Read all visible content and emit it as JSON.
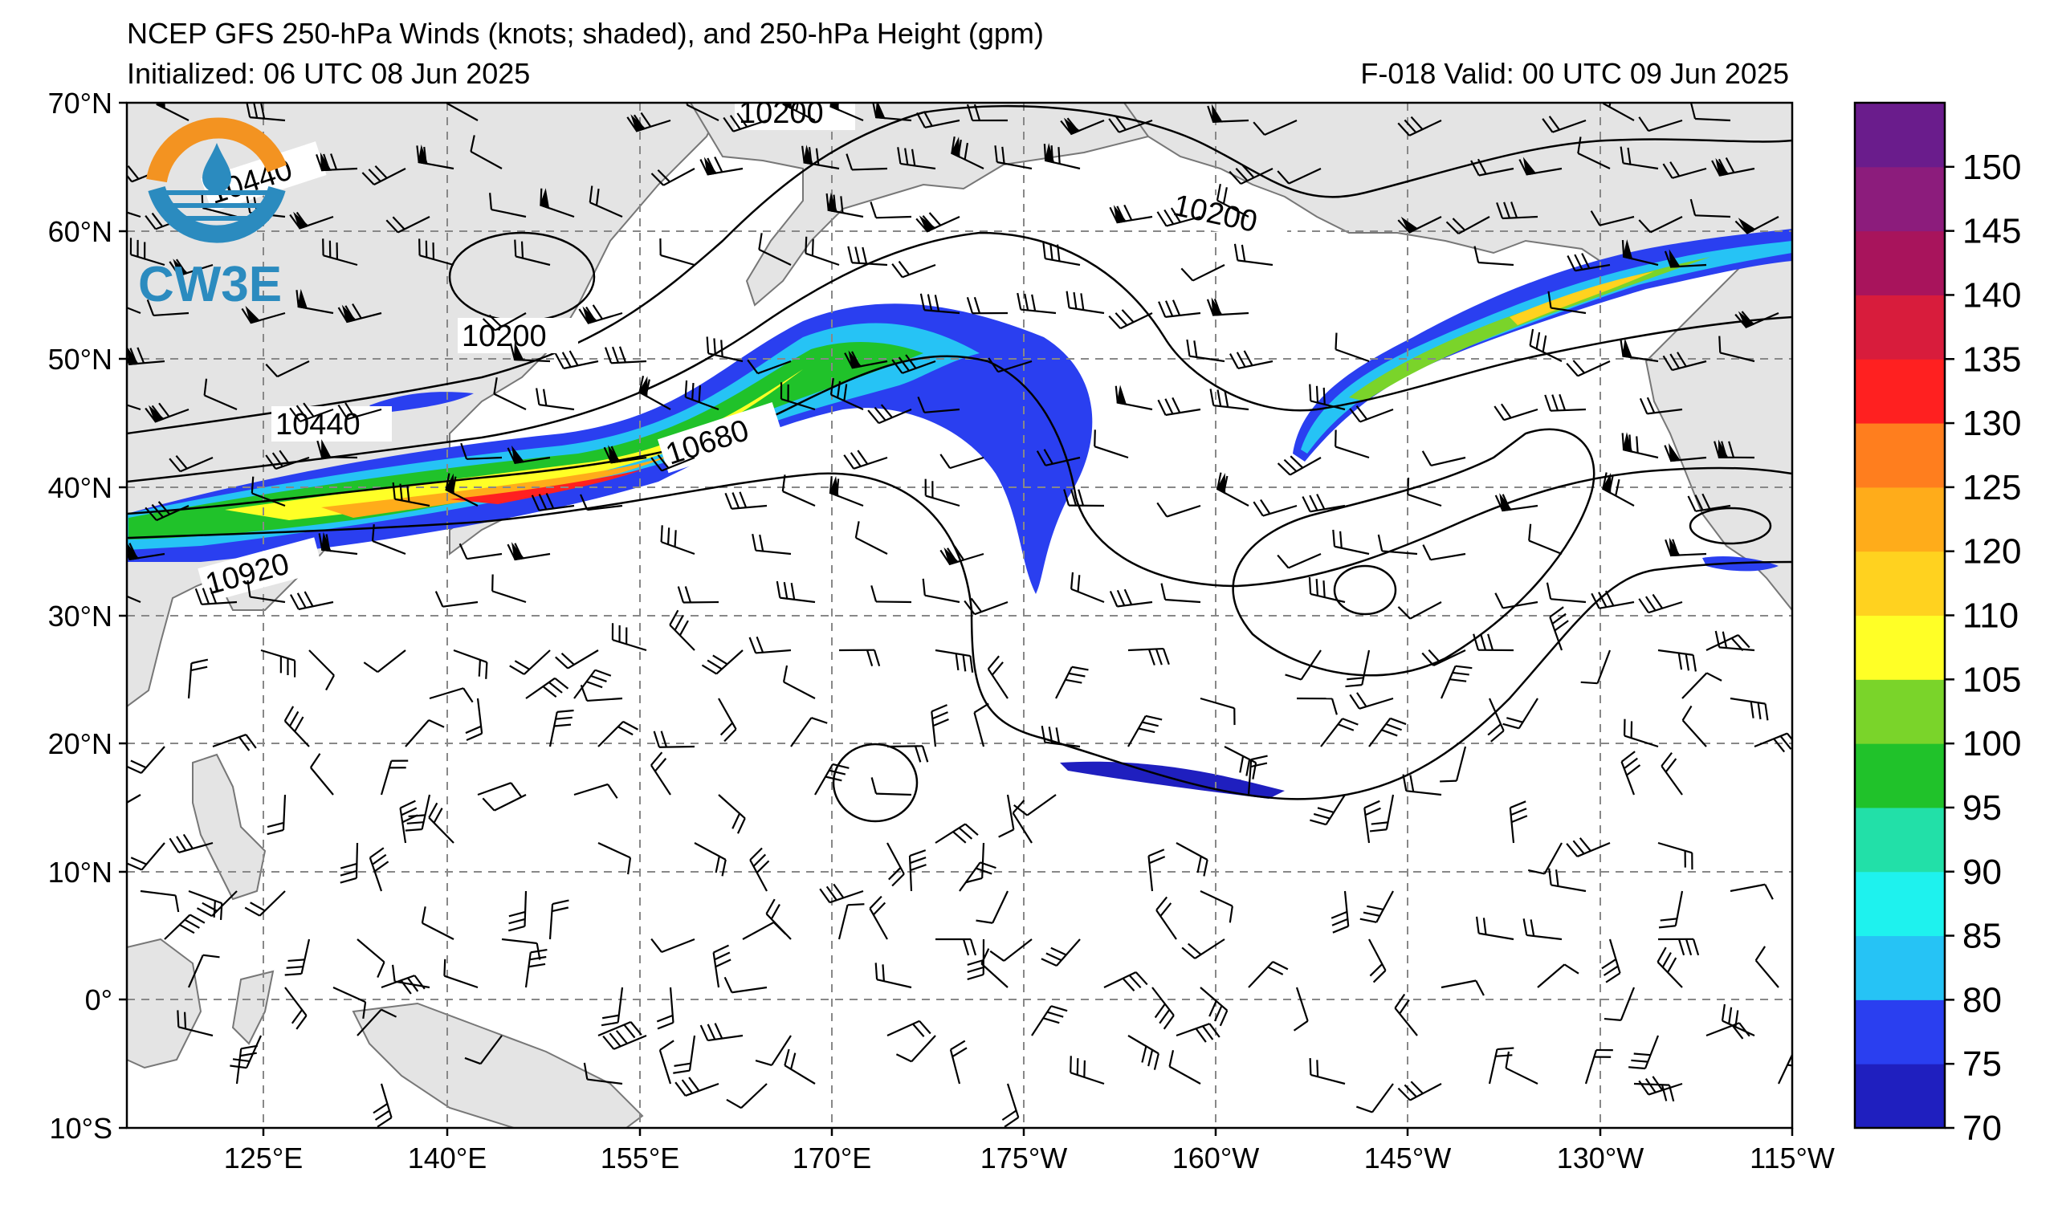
{
  "header": {
    "title": "NCEP GFS 250-hPa Winds (knots; shaded), and 250-hPa Height (gpm)",
    "initialized": "Initialized: 06 UTC 08 Jun 2025",
    "valid": "F-018  Valid: 00 UTC 09 Jun 2025"
  },
  "logo": {
    "text": "CW3E",
    "icon": "water-drop-logo-icon"
  },
  "map": {
    "lon_range": [
      110,
      245
    ],
    "lat_range": [
      -10,
      70
    ],
    "lat_labels": [
      "70°N",
      "60°N",
      "50°N",
      "40°N",
      "30°N",
      "20°N",
      "10°N",
      "0°",
      "10°S"
    ],
    "lon_labels": [
      "125°E",
      "140°E",
      "155°E",
      "170°E",
      "175°W",
      "160°W",
      "145°W",
      "130°W",
      "115°W"
    ],
    "gridlines": "dashed",
    "land_color": "#e4e4e4",
    "ocean_color": "#ffffff"
  },
  "height_contours": {
    "units": "gpm",
    "labels": [
      "10200",
      "10440",
      "10200",
      "10440",
      "10680",
      "10920",
      "10200"
    ]
  },
  "colorbar": {
    "units": "knots",
    "ticks": [
      "70",
      "75",
      "80",
      "85",
      "90",
      "95",
      "100",
      "105",
      "110",
      "120",
      "125",
      "130",
      "135",
      "140",
      "145",
      "150"
    ],
    "colors": [
      "#1f1fbf",
      "#2a3ff0",
      "#26c3f5",
      "#1ef2ee",
      "#22e0a8",
      "#20c22a",
      "#7ad42a",
      "#ffff26",
      "#ffd21f",
      "#ffac1a",
      "#ff7e1e",
      "#ff2020",
      "#d81c3c",
      "#a8145c",
      "#8c1c7c",
      "#6a1c8c"
    ]
  }
}
